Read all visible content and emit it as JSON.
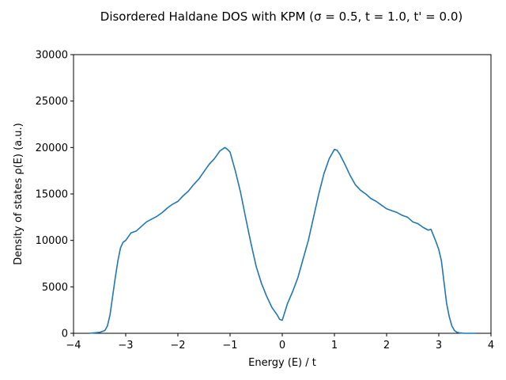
{
  "chart_data": {
    "type": "line",
    "title": "Disordered Haldane DOS with KPM (σ = 0.5, t = 1.0, t' = 0.0)",
    "xlabel": "Energy (E) / t",
    "ylabel": "Density of states ρ(E) (a.u.)",
    "xlim": [
      -4,
      4
    ],
    "ylim": [
      0,
      30000
    ],
    "xticks": [
      "−4",
      "−3",
      "−2",
      "−1",
      "0",
      "1",
      "2",
      "3",
      "4"
    ],
    "yticks": [
      "0",
      "5000",
      "10000",
      "15000",
      "20000",
      "25000",
      "30000"
    ],
    "grid": false,
    "legend": "none",
    "series": [
      {
        "color": "#1f77b4",
        "x": [
          -3.7,
          -3.6,
          -3.5,
          -3.4,
          -3.35,
          -3.3,
          -3.25,
          -3.2,
          -3.15,
          -3.1,
          -3.05,
          -3.0,
          -2.9,
          -2.8,
          -2.7,
          -2.6,
          -2.5,
          -2.4,
          -2.3,
          -2.2,
          -2.1,
          -2.0,
          -1.9,
          -1.8,
          -1.7,
          -1.6,
          -1.5,
          -1.4,
          -1.3,
          -1.2,
          -1.1,
          -1.05,
          -1.0,
          -0.9,
          -0.8,
          -0.7,
          -0.6,
          -0.5,
          -0.4,
          -0.3,
          -0.2,
          -0.1,
          -0.05,
          0.0,
          0.05,
          0.1,
          0.2,
          0.3,
          0.4,
          0.5,
          0.6,
          0.7,
          0.8,
          0.9,
          1.0,
          1.05,
          1.1,
          1.2,
          1.3,
          1.4,
          1.5,
          1.6,
          1.7,
          1.8,
          1.9,
          2.0,
          2.1,
          2.2,
          2.3,
          2.4,
          2.5,
          2.6,
          2.7,
          2.8,
          2.85,
          2.9,
          2.95,
          3.0,
          3.05,
          3.1,
          3.15,
          3.2,
          3.25,
          3.3,
          3.35,
          3.4,
          3.5,
          3.6,
          3.7
        ],
        "y": [
          0,
          50,
          100,
          300,
          800,
          2000,
          4000,
          6000,
          7800,
          9200,
          9800,
          10000,
          10800,
          11000,
          11500,
          12000,
          12300,
          12600,
          13000,
          13500,
          13900,
          14200,
          14800,
          15300,
          16000,
          16600,
          17400,
          18200,
          18800,
          19600,
          20000,
          19800,
          19500,
          17500,
          15200,
          12400,
          9700,
          7200,
          5400,
          4000,
          2800,
          2000,
          1500,
          1400,
          2300,
          3200,
          4500,
          6000,
          8000,
          10000,
          12500,
          15000,
          17200,
          18800,
          19800,
          19700,
          19300,
          18200,
          17000,
          16000,
          15400,
          15000,
          14500,
          14200,
          13800,
          13400,
          13200,
          13000,
          12700,
          12500,
          12000,
          11800,
          11400,
          11100,
          11200,
          10500,
          9800,
          9000,
          7800,
          5500,
          3200,
          1800,
          800,
          300,
          100,
          50,
          0,
          0,
          0
        ]
      }
    ]
  }
}
